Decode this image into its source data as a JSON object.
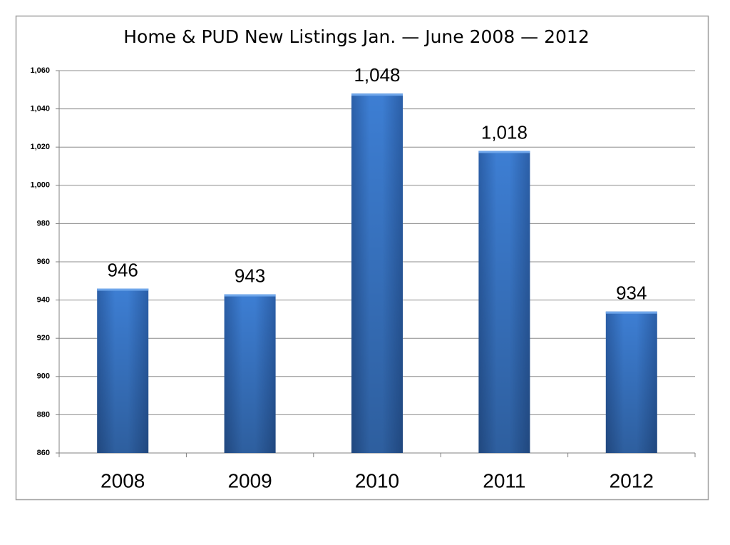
{
  "chart_data": {
    "type": "bar",
    "title": "Home & PUD New Listings Jan. — June 2008 — 2012",
    "categories": [
      "2008",
      "2009",
      "2010",
      "2011",
      "2012"
    ],
    "values": [
      946,
      943,
      1048,
      1018,
      934
    ],
    "value_labels": [
      "946",
      "943",
      "1,048",
      "1,018",
      "934"
    ],
    "color": "#3d7ed3",
    "ylim": [
      860,
      1060
    ],
    "yticks": [
      860,
      880,
      900,
      920,
      940,
      960,
      980,
      {
        "value": 1000,
        "label": "1,000"
      },
      {
        "value": 1020,
        "label": "1,020"
      },
      {
        "value": 1040,
        "label": "1,040"
      },
      {
        "value": 1060,
        "label": "1,060"
      }
    ],
    "grid": true
  }
}
